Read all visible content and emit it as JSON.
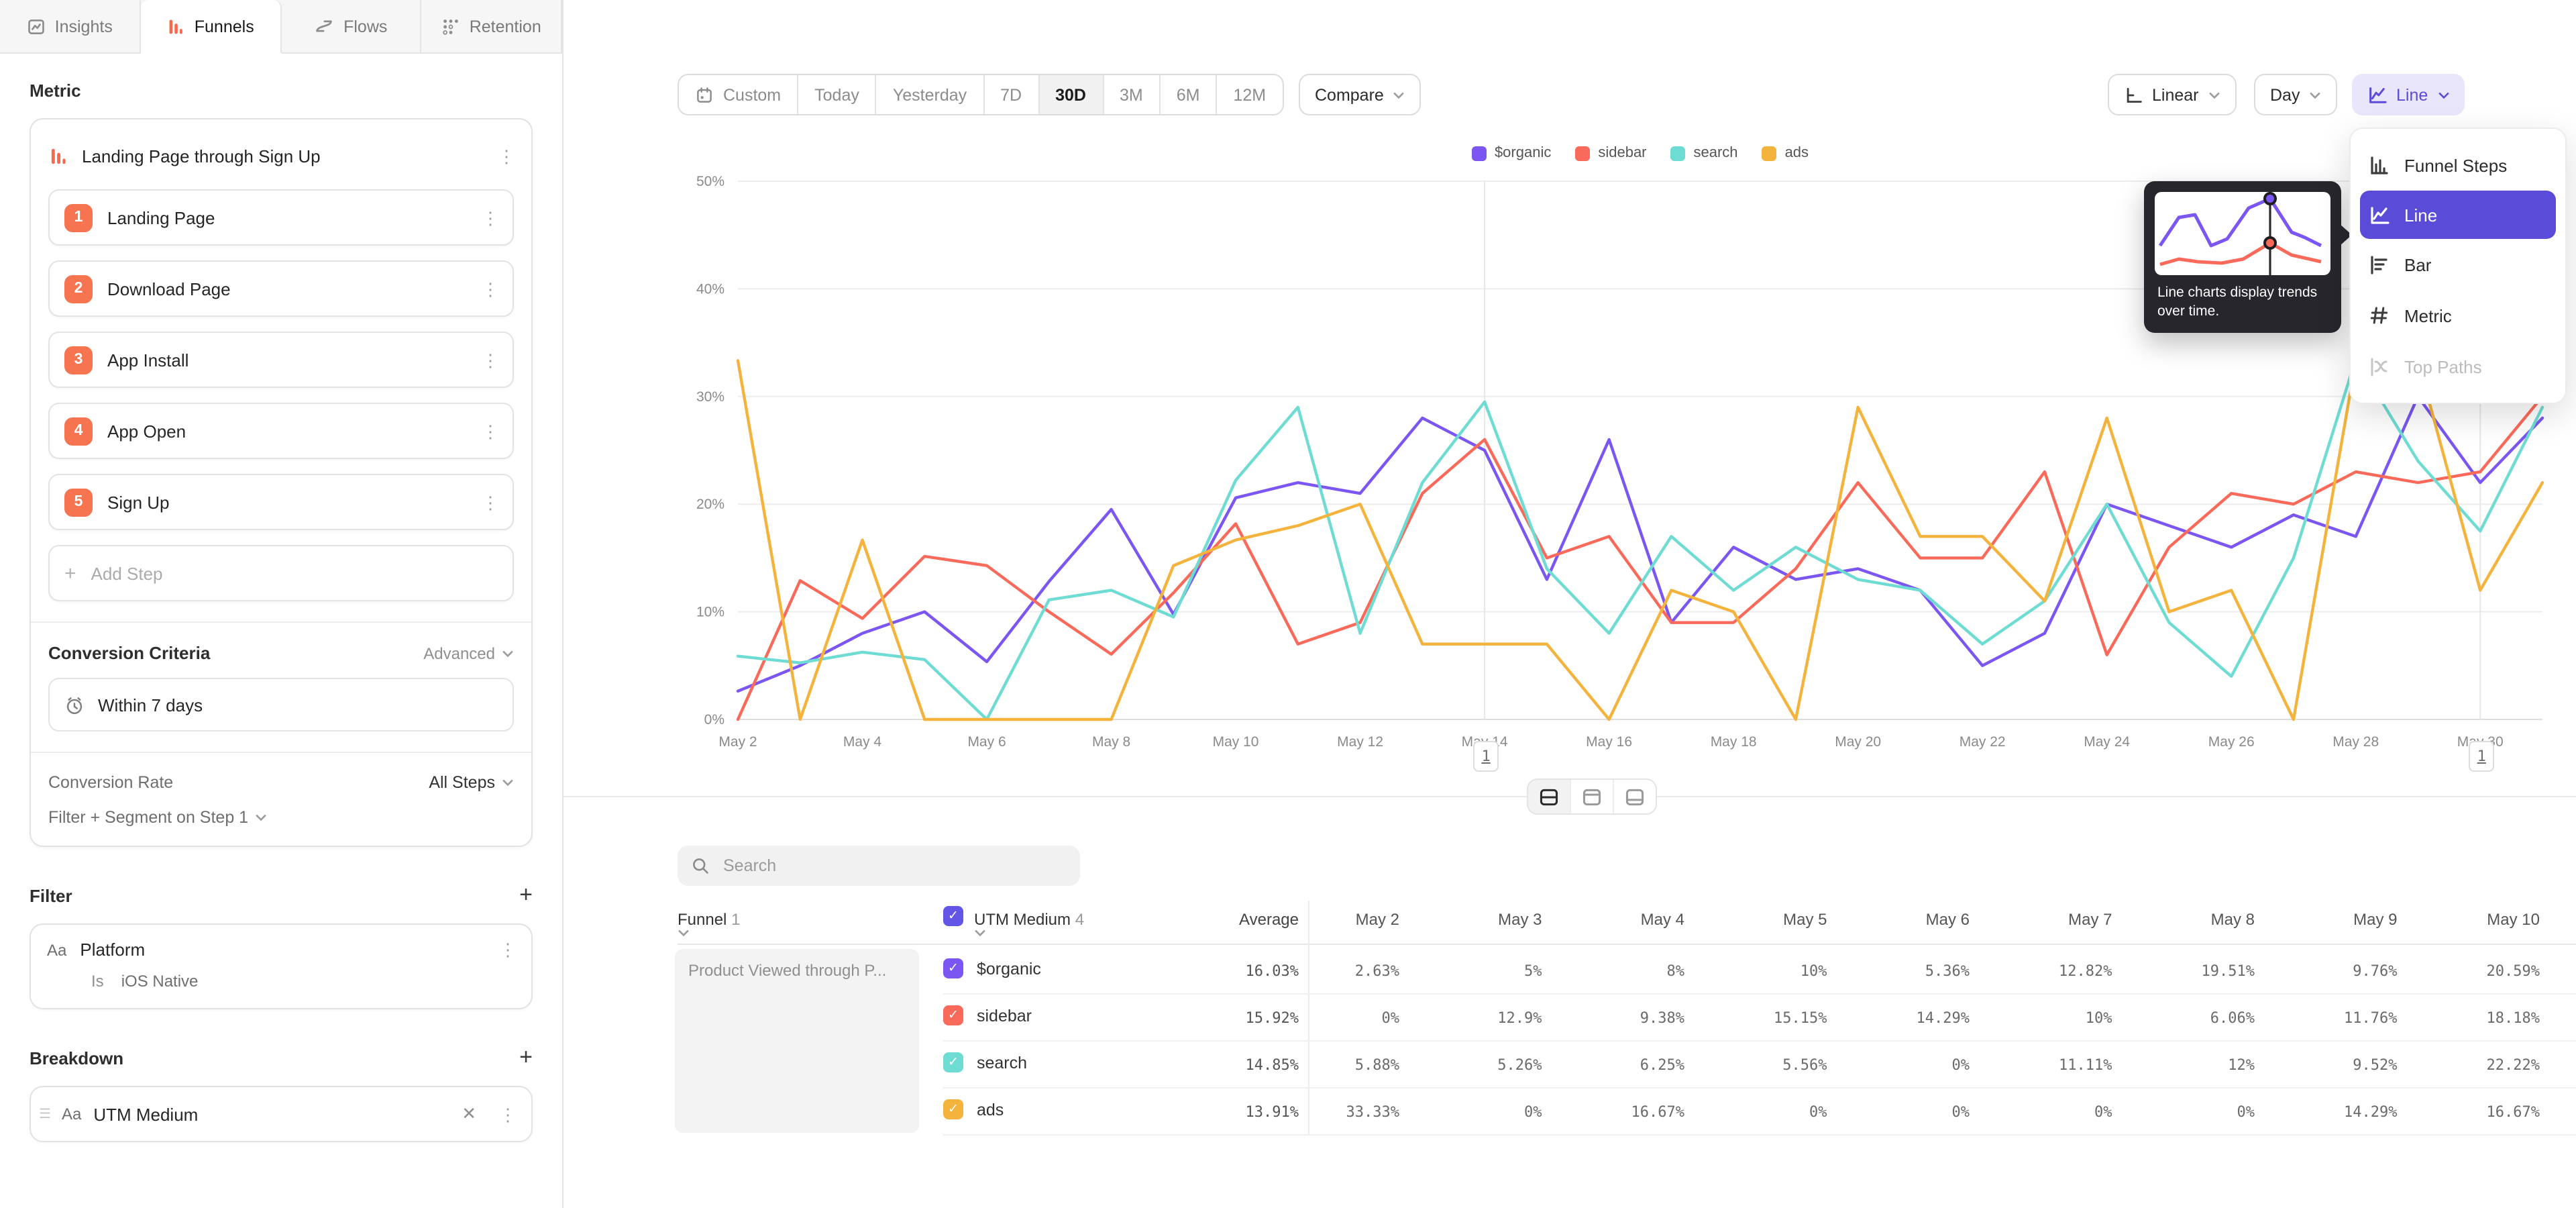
{
  "tabs": [
    {
      "label": "Insights",
      "icon": "insights-icon",
      "active": false
    },
    {
      "label": "Funnels",
      "icon": "funnels-icon",
      "active": true
    },
    {
      "label": "Flows",
      "icon": "flows-icon",
      "active": false
    },
    {
      "label": "Retention",
      "icon": "retention-icon",
      "active": false
    }
  ],
  "sidebar": {
    "metric_label": "Metric",
    "funnel": {
      "title": "Landing Page through Sign Up",
      "steps": [
        {
          "num": "1",
          "label": "Landing Page"
        },
        {
          "num": "2",
          "label": "Download Page"
        },
        {
          "num": "3",
          "label": "App Install"
        },
        {
          "num": "4",
          "label": "App Open"
        },
        {
          "num": "5",
          "label": "Sign Up"
        }
      ],
      "add_step_label": "Add Step"
    },
    "conversion_criteria": {
      "title": "Conversion Criteria",
      "advanced_label": "Advanced",
      "window_label": "Within 7 days"
    },
    "conversion_rate": {
      "label": "Conversion Rate",
      "value": "All Steps"
    },
    "filter_segment_label": "Filter + Segment on Step 1",
    "filter": {
      "title": "Filter",
      "type_badge": "Aa",
      "property": "Platform",
      "operator": "Is",
      "value": "iOS Native"
    },
    "breakdown": {
      "title": "Breakdown",
      "type_badge": "Aa",
      "property": "UTM Medium"
    }
  },
  "toolbar": {
    "date_ranges": [
      "Custom",
      "Today",
      "Yesterday",
      "7D",
      "30D",
      "3M",
      "6M",
      "12M"
    ],
    "active_range": "30D",
    "compare_label": "Compare",
    "scale_label": "Linear",
    "granularity_label": "Day",
    "chart_type_label": "Line"
  },
  "chart_menu": {
    "items": [
      {
        "label": "Funnel Steps",
        "icon": "funnel-steps-icon",
        "selected": false,
        "disabled": false
      },
      {
        "label": "Line",
        "icon": "line-icon",
        "selected": true,
        "disabled": false
      },
      {
        "label": "Bar",
        "icon": "bar-icon",
        "selected": false,
        "disabled": false
      },
      {
        "label": "Metric",
        "icon": "metric-icon",
        "selected": false,
        "disabled": false
      },
      {
        "label": "Top Paths",
        "icon": "top-paths-icon",
        "selected": false,
        "disabled": true
      }
    ]
  },
  "tooltip": {
    "text": "Line charts display trends over time."
  },
  "annotations": [
    {
      "label": "1",
      "x": "May 14",
      "index": 12
    },
    {
      "label": "1",
      "x": "May 30",
      "index": 28
    }
  ],
  "chart_data": {
    "type": "line",
    "x": [
      "May 2",
      "May 3",
      "May 4",
      "May 5",
      "May 6",
      "May 7",
      "May 8",
      "May 9",
      "May 10",
      "May 11",
      "May 12",
      "May 13",
      "May 14",
      "May 15",
      "May 16",
      "May 17",
      "May 18",
      "May 19",
      "May 20",
      "May 21",
      "May 22",
      "May 23",
      "May 24",
      "May 25",
      "May 26",
      "May 27",
      "May 28",
      "May 29",
      "May 30",
      "May 31"
    ],
    "ylim": [
      0,
      50
    ],
    "yticks": [
      "0%",
      "10%",
      "20%",
      "30%",
      "40%",
      "50%"
    ],
    "x_ticks_shown_every": 2,
    "grid": true,
    "legend_position": "top-center",
    "series": [
      {
        "name": "$organic",
        "color": "#7b56f2",
        "values": [
          2.63,
          5,
          8,
          10,
          5.36,
          12.82,
          19.51,
          9.76,
          20.59,
          22,
          21,
          28,
          25,
          13,
          26,
          9,
          16,
          13,
          14,
          12,
          5,
          8,
          20,
          18,
          16,
          19,
          17,
          30,
          22,
          28
        ]
      },
      {
        "name": "sidebar",
        "color": "#f96a5a",
        "values": [
          0,
          12.9,
          9.38,
          15.15,
          14.29,
          10,
          6.06,
          11.76,
          18.18,
          7,
          9,
          21,
          26,
          15,
          17,
          9,
          9,
          14,
          22,
          15,
          15,
          23,
          6,
          16,
          21,
          20,
          23,
          22,
          23,
          30
        ]
      },
      {
        "name": "search",
        "color": "#6edcd3",
        "values": [
          5.88,
          5.26,
          6.25,
          5.56,
          0,
          11.11,
          12,
          9.52,
          22.22,
          29,
          8,
          22,
          29.5,
          14,
          8,
          17,
          12,
          16,
          13,
          12,
          7,
          11,
          20,
          9,
          4,
          15,
          33.5,
          24,
          17.5,
          29
        ]
      },
      {
        "name": "ads",
        "color": "#f4b33c",
        "values": [
          33.33,
          0,
          16.67,
          0,
          0,
          0,
          0,
          14.29,
          16.67,
          18,
          20,
          7,
          7,
          7,
          0,
          12,
          10,
          0,
          29,
          17,
          17,
          11,
          28,
          10,
          12,
          0,
          33.33,
          33.33,
          12,
          22
        ]
      }
    ]
  },
  "table": {
    "search_placeholder": "Search",
    "funnel_col": {
      "label": "Funnel",
      "count": "1"
    },
    "breakdown_col": {
      "label": "UTM Medium",
      "count": "4"
    },
    "average_label": "Average",
    "date_columns": [
      "May 2",
      "May 3",
      "May 4",
      "May 5",
      "May 6",
      "May 7",
      "May 8",
      "May 9",
      "May 10"
    ],
    "group_label": "Product Viewed through P...",
    "rows": [
      {
        "name": "$organic",
        "color": "#7b56f2",
        "average": "16.03%",
        "values": [
          "2.63%",
          "5%",
          "8%",
          "10%",
          "5.36%",
          "12.82%",
          "19.51%",
          "9.76%",
          "20.59%"
        ]
      },
      {
        "name": "sidebar",
        "color": "#f96a5a",
        "average": "15.92%",
        "values": [
          "0%",
          "12.9%",
          "9.38%",
          "15.15%",
          "14.29%",
          "10%",
          "6.06%",
          "11.76%",
          "18.18%"
        ]
      },
      {
        "name": "search",
        "color": "#6edcd3",
        "average": "14.85%",
        "values": [
          "5.88%",
          "5.26%",
          "6.25%",
          "5.56%",
          "0%",
          "11.11%",
          "12%",
          "9.52%",
          "22.22%"
        ]
      },
      {
        "name": "ads",
        "color": "#f4b33c",
        "average": "13.91%",
        "values": [
          "33.33%",
          "0%",
          "16.67%",
          "0%",
          "0%",
          "0%",
          "0%",
          "14.29%",
          "16.67%"
        ]
      }
    ]
  }
}
